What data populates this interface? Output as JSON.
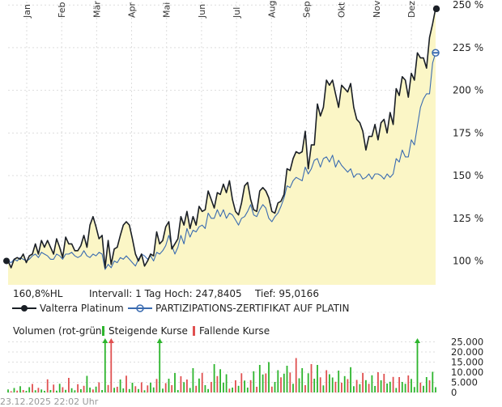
{
  "chart_data": {
    "type": "line",
    "x_tick_labels": [
      "Jan",
      "Feb",
      "Mär",
      "Apr",
      "Mai",
      "Jun",
      "Jul",
      "Aug",
      "Sep",
      "Okt",
      "Nov",
      "Dez"
    ],
    "y_tick_labels": [
      "100 %",
      "125 %",
      "150 %",
      "175 %",
      "200 %",
      "225 %",
      "250 %"
    ],
    "y_ticks": [
      100,
      125,
      150,
      175,
      200,
      225,
      250
    ],
    "ylim": [
      86,
      252
    ],
    "grid": true,
    "legend_position": "bottom",
    "info": {
      "change": "160,8%HL",
      "interval": "Intervall: 1 Tag",
      "high": "Hoch: 247,8405",
      "low": "Tief: 95,0166"
    },
    "series": [
      {
        "name": "Valterra Platinum",
        "color": "#1a1f26",
        "end_value": 247.8,
        "values": [
          100,
          96,
          101,
          102,
          101,
          104,
          99,
          103,
          104,
          110,
          104,
          112,
          108,
          112,
          108,
          104,
          113,
          108,
          102,
          114,
          110,
          110,
          106,
          106,
          109,
          115,
          108,
          121,
          126,
          120,
          113,
          115,
          96,
          112,
          98,
          107,
          108,
          115,
          121,
          123,
          121,
          113,
          104,
          100,
          104,
          97,
          100,
          104,
          103,
          117,
          110,
          112,
          120,
          123,
          107,
          110,
          113,
          126,
          121,
          129,
          119,
          126,
          121,
          132,
          129,
          130,
          141,
          136,
          131,
          140,
          139,
          145,
          140,
          147,
          136,
          129,
          127,
          134,
          144,
          146,
          136,
          130,
          129,
          141,
          143,
          141,
          137,
          129,
          128,
          134,
          135,
          139,
          154,
          153,
          160,
          164,
          163,
          164,
          176,
          154,
          168,
          168,
          192,
          185,
          190,
          206,
          203,
          206,
          198,
          190,
          203,
          201,
          199,
          204,
          190,
          183,
          181,
          176,
          165,
          173,
          173,
          180,
          171,
          181,
          183,
          175,
          187,
          180,
          201,
          197,
          208,
          206,
          196,
          210,
          206,
          222,
          219,
          219,
          213,
          231,
          239,
          248
        ]
      },
      {
        "name": "PARTIZIPATIONS-ZERTIFIKAT AUF PLATIN",
        "color": "#3a6bb0",
        "end_value": 222,
        "values": [
          100,
          99,
          101,
          100,
          102,
          101,
          100,
          101,
          103,
          104,
          102,
          105,
          104,
          103,
          101,
          101,
          104,
          103,
          101,
          104,
          104,
          105,
          103,
          102,
          103,
          106,
          103,
          102,
          104,
          103,
          105,
          104,
          95,
          98,
          96,
          100,
          99,
          102,
          101,
          103,
          101,
          99,
          97,
          101,
          104,
          103,
          101,
          103,
          100,
          105,
          104,
          106,
          109,
          115,
          109,
          104,
          108,
          115,
          110,
          119,
          114,
          118,
          117,
          120,
          121,
          119,
          128,
          125,
          125,
          130,
          126,
          130,
          125,
          128,
          127,
          124,
          121,
          125,
          126,
          129,
          133,
          127,
          126,
          130,
          133,
          131,
          125,
          123,
          126,
          128,
          132,
          137,
          144,
          143,
          147,
          149,
          148,
          147,
          155,
          151,
          154,
          159,
          160,
          155,
          160,
          161,
          158,
          162,
          155,
          159,
          156,
          154,
          152,
          154,
          149,
          151,
          151,
          148,
          149,
          151,
          148,
          151,
          151,
          150,
          148,
          151,
          149,
          151,
          160,
          158,
          165,
          161,
          161,
          171,
          168,
          179,
          190,
          195,
          198,
          198,
          216,
          222
        ]
      }
    ],
    "volume": {
      "title": "Volumen (rot-grün)",
      "legend_up": "Steigende Kurse",
      "legend_down": "Fallende Kurse",
      "y_tick_labels": [
        "25.000",
        "20.000",
        "15.000",
        "10.000",
        "5.000",
        "0"
      ],
      "y_ticks": [
        25000,
        20000,
        15000,
        10000,
        5000,
        0
      ],
      "ymax": 26000,
      "color_up": "#2db52d",
      "color_down": "#e05050",
      "values": [
        1500,
        600,
        2200,
        900,
        3100,
        1200,
        800,
        2600,
        4200,
        1100,
        2300,
        1500,
        800,
        6500,
        1200,
        3900,
        900,
        4300,
        2600,
        1300,
        7200,
        2100,
        1100,
        4100,
        1600,
        3300,
        8200,
        2400,
        1500,
        2900,
        5000,
        1200,
        25000,
        3700,
        25000,
        2300,
        2800,
        6400,
        2000,
        8300,
        1700,
        4800,
        3100,
        1700,
        5000,
        1100,
        3500,
        4800,
        2500,
        6700,
        25000,
        1900,
        4600,
        6800,
        3600,
        9600,
        1200,
        8000,
        5100,
        6400,
        2200,
        12000,
        3300,
        6900,
        9700,
        3600,
        1700,
        5200,
        14000,
        8100,
        11500,
        4800,
        9000,
        1900,
        2400,
        6000,
        3300,
        9500,
        5900,
        2400,
        6100,
        10500,
        2800,
        13600,
        8900,
        9400,
        15000,
        2900,
        5200,
        11000,
        7500,
        9300,
        13200,
        9900,
        4300,
        17000,
        7000,
        12000,
        3600,
        9500,
        14000,
        6800,
        13600,
        7500,
        3500,
        11000,
        9000,
        7400,
        5300,
        10800,
        4800,
        8100,
        6600,
        12500,
        3100,
        6200,
        4100,
        9700,
        6100,
        4300,
        8500,
        3200,
        10000,
        6000,
        9200,
        4400,
        5300,
        7700,
        2200,
        7600,
        5200,
        4300,
        8400,
        6700,
        2700,
        25000,
        4900,
        3300,
        7600,
        6000,
        10200,
        2600
      ],
      "up": [
        1,
        0,
        1,
        0,
        1,
        0,
        1,
        1,
        0,
        1,
        0,
        1,
        1,
        0,
        1,
        0,
        1,
        1,
        0,
        1,
        0,
        1,
        1,
        0,
        1,
        0,
        1,
        1,
        0,
        1,
        0,
        1,
        1,
        0,
        0,
        1,
        0,
        1,
        1,
        0,
        1,
        1,
        0,
        1,
        0,
        1,
        0,
        1,
        1,
        0,
        1,
        1,
        0,
        1,
        0,
        1,
        1,
        0,
        1,
        0,
        1,
        1,
        0,
        1,
        0,
        1,
        1,
        0,
        1,
        0,
        1,
        1,
        1,
        0,
        1,
        0,
        1,
        0,
        1,
        1,
        0,
        1,
        0,
        1,
        1,
        0,
        1,
        0,
        1,
        1,
        0,
        1,
        1,
        0,
        1,
        0,
        1,
        1,
        0,
        1,
        0,
        1,
        1,
        0,
        1,
        0,
        1,
        1,
        0,
        1,
        0,
        1,
        0,
        1,
        1,
        0,
        1,
        0,
        1,
        0,
        1,
        1,
        0,
        1,
        0,
        1,
        1,
        0,
        1,
        0,
        1,
        1,
        0,
        1,
        1,
        1,
        0,
        1,
        1,
        0,
        1,
        1
      ],
      "peak_markers": [
        32,
        34,
        50,
        135
      ]
    },
    "timestamp": "23.12.2025 22:02 Uhr"
  }
}
